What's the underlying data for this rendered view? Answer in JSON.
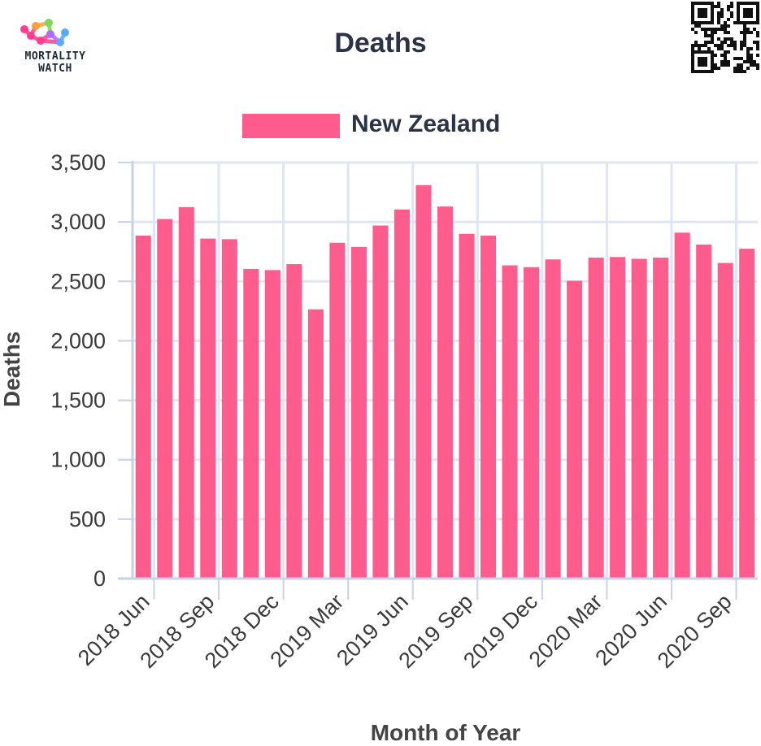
{
  "header": {
    "logo_text_line1": "MORTALITY",
    "logo_text_line2": "WATCH",
    "title": "Deaths"
  },
  "colors": {
    "bar": "#ff5c8e",
    "grid": "#dfe5f3",
    "axis": "#c7d1ea",
    "text": "#2b3446",
    "logo_pink": "#ff3d8e",
    "logo_orange": "#ff9d3b",
    "logo_green": "#7ed957",
    "logo_blue": "#5aa9ff",
    "logo_purple": "#b06bff"
  },
  "chart_data": {
    "type": "bar",
    "title": "Deaths",
    "xlabel": "Month of Year",
    "ylabel": "Deaths",
    "ylim": [
      0,
      3500
    ],
    "yticks": [
      0,
      500,
      1000,
      1500,
      2000,
      2500,
      3000,
      3500
    ],
    "ytick_labels": [
      "0",
      "500",
      "1,000",
      "1,500",
      "2,000",
      "2,500",
      "3,000",
      "3,500"
    ],
    "grid": true,
    "legend_position": "top-center",
    "categories": [
      "2018 Jun",
      "2018 Jul",
      "2018 Aug",
      "2018 Sep",
      "2018 Oct",
      "2018 Nov",
      "2018 Dec",
      "2019 Jan",
      "2019 Feb",
      "2019 Mar",
      "2019 Apr",
      "2019 May",
      "2019 Jun",
      "2019 Jul",
      "2019 Aug",
      "2019 Sep",
      "2019 Oct",
      "2019 Nov",
      "2019 Dec",
      "2020 Jan",
      "2020 Feb",
      "2020 Mar",
      "2020 Apr",
      "2020 May",
      "2020 Jun",
      "2020 Jul",
      "2020 Aug",
      "2020 Sep",
      "2020 Oct"
    ],
    "xtick_labels": [
      "2018 Jun",
      "2018 Sep",
      "2018 Dec",
      "2019 Mar",
      "2019 Jun",
      "2019 Sep",
      "2019 Dec",
      "2020 Mar",
      "2020 Jun",
      "2020 Sep"
    ],
    "series": [
      {
        "name": "New Zealand",
        "values": [
          2885,
          3025,
          3125,
          2860,
          2855,
          2605,
          2595,
          2645,
          2265,
          2825,
          2790,
          2970,
          3105,
          3310,
          3130,
          2900,
          2885,
          2635,
          2620,
          2685,
          2505,
          2700,
          2705,
          2690,
          2700,
          2910,
          2810,
          2655,
          2775
        ]
      }
    ]
  }
}
